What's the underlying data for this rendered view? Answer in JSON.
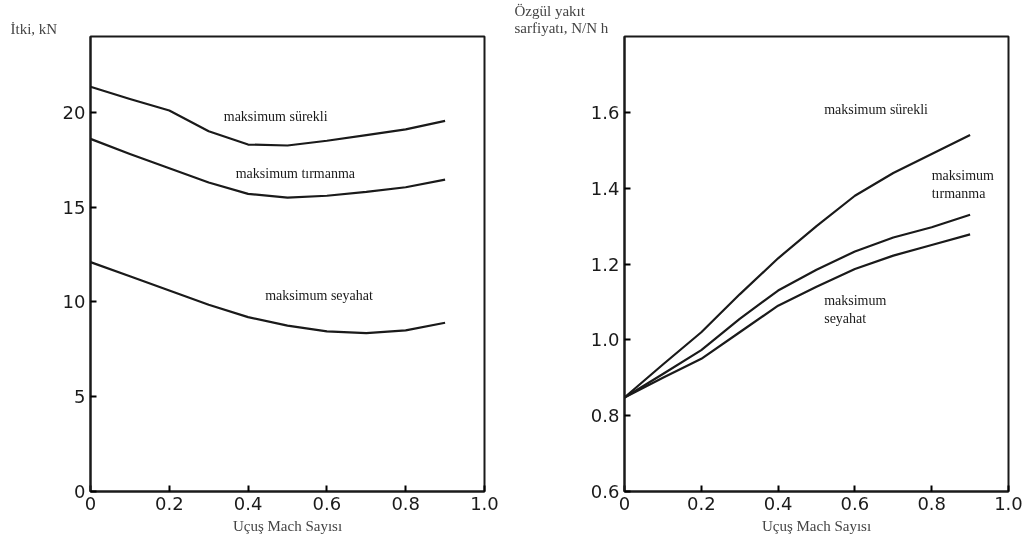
{
  "chart_data": [
    {
      "type": "line",
      "ylabel": "İtki, kN",
      "xlabel": "Uçuş Mach Sayısı",
      "xlim": [
        0,
        1
      ],
      "ylim": [
        0,
        24
      ],
      "xticks": [
        0,
        0.2,
        0.4,
        0.6,
        0.8,
        {
          "value": 1,
          "label": "1.0"
        }
      ],
      "yticks": [
        0,
        5,
        10,
        15,
        20
      ],
      "grid": false,
      "legend": false,
      "marker": "none",
      "line_style": "solid",
      "series": [
        {
          "name": "maksimum sürekli",
          "color": "#1a1a1a",
          "x": [
            0,
            0.1,
            0.2,
            0.3,
            0.4,
            0.5,
            0.6,
            0.7,
            0.8,
            0.9
          ],
          "values": [
            21.35,
            20.7,
            20.1,
            19.0,
            18.3,
            18.25,
            18.5,
            18.8,
            19.1,
            19.55
          ]
        },
        {
          "name": "maksimum tırmanma",
          "color": "#1a1a1a",
          "x": [
            0,
            0.1,
            0.2,
            0.3,
            0.4,
            0.5,
            0.6,
            0.7,
            0.8,
            0.9
          ],
          "values": [
            18.6,
            17.8,
            17.05,
            16.3,
            15.7,
            15.5,
            15.6,
            15.8,
            16.05,
            16.45
          ]
        },
        {
          "name": "maksimum seyahat",
          "color": "#1a1a1a",
          "x": [
            0,
            0.1,
            0.2,
            0.3,
            0.4,
            0.5,
            0.6,
            0.7,
            0.8,
            0.9
          ],
          "values": [
            12.1,
            11.35,
            10.6,
            9.85,
            9.2,
            8.75,
            8.45,
            8.35,
            8.5,
            8.9
          ]
        }
      ]
    },
    {
      "type": "line",
      "ylabel": "Özgül yakıt\nsarfiyatı, N/N h",
      "xlabel": "Uçuş Mach Sayısı",
      "xlim": [
        0,
        1
      ],
      "ylim": [
        0.6,
        1.8
      ],
      "xticks": [
        0,
        0.2,
        0.4,
        0.6,
        0.8,
        {
          "value": 1,
          "label": "1.0"
        }
      ],
      "yticks": [
        0.6,
        0.8,
        {
          "value": 1,
          "label": "1.0"
        },
        1.2,
        1.4,
        1.6
      ],
      "grid": false,
      "legend": false,
      "marker": "none",
      "line_style": "solid",
      "series": [
        {
          "name": "maksimum sürekli",
          "color": "#1a1a1a",
          "x": [
            0,
            0.1,
            0.2,
            0.3,
            0.4,
            0.5,
            0.6,
            0.7,
            0.8,
            0.9
          ],
          "values": [
            0.848,
            0.935,
            1.02,
            1.12,
            1.215,
            1.3,
            1.38,
            1.44,
            1.49,
            1.54
          ]
        },
        {
          "name": "maksimum\ntırmanma",
          "color": "#1a1a1a",
          "x": [
            0,
            0.1,
            0.2,
            0.3,
            0.4,
            0.5,
            0.6,
            0.7,
            0.8,
            0.9
          ],
          "values": [
            0.848,
            0.91,
            0.973,
            1.055,
            1.13,
            1.185,
            1.233,
            1.27,
            1.297,
            1.33
          ]
        },
        {
          "name": "maksimum\nseyahat",
          "color": "#1a1a1a",
          "x": [
            0,
            0.1,
            0.2,
            0.3,
            0.4,
            0.5,
            0.6,
            0.7,
            0.8,
            0.9
          ],
          "values": [
            0.848,
            0.9,
            0.95,
            1.02,
            1.09,
            1.14,
            1.187,
            1.222,
            1.25,
            1.278
          ]
        }
      ]
    }
  ]
}
